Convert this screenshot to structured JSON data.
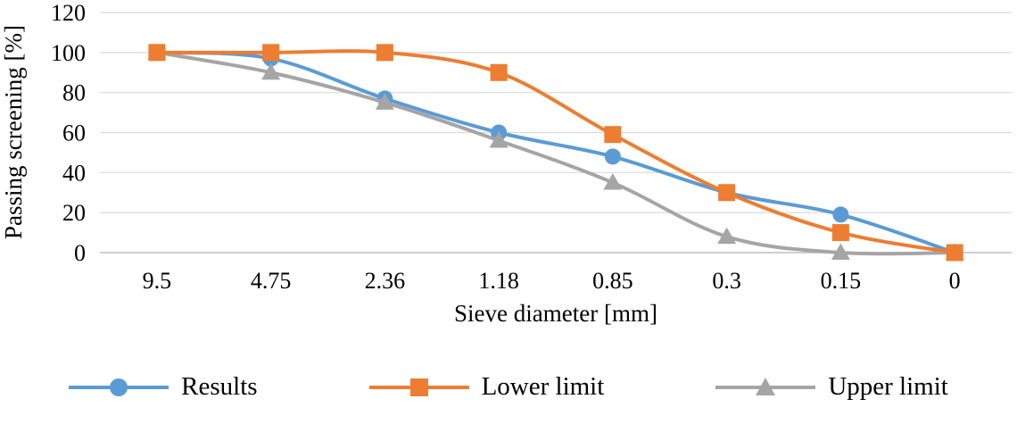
{
  "chart_data": {
    "type": "line",
    "title": "",
    "xlabel": "Sieve diameter [mm]",
    "ylabel": "Passing screening [%]",
    "categories": [
      "9.5",
      "4.75",
      "2.36",
      "1.18",
      "0.85",
      "0.3",
      "0.15",
      "0"
    ],
    "series": [
      {
        "name": "Results",
        "marker": "circle",
        "color": "#5B9BD5",
        "values": [
          100,
          97,
          77,
          60,
          48,
          30,
          19,
          0
        ]
      },
      {
        "name": "Lower limit",
        "marker": "square",
        "color": "#ED7D31",
        "values": [
          100,
          100,
          100,
          90,
          59,
          30,
          10,
          0
        ]
      },
      {
        "name": "Upper limit",
        "marker": "triangle",
        "color": "#A5A5A5",
        "values": [
          100,
          90,
          75,
          56,
          35,
          8,
          0,
          0
        ]
      }
    ],
    "ylim": [
      0,
      120
    ],
    "yticks": [
      0,
      20,
      40,
      60,
      80,
      100,
      120
    ],
    "grid": "horizontal",
    "gridline_color": "#D9D9D9",
    "axis_line_color": "#BFBFBF",
    "line_style": "smooth",
    "legend_position": "bottom"
  }
}
